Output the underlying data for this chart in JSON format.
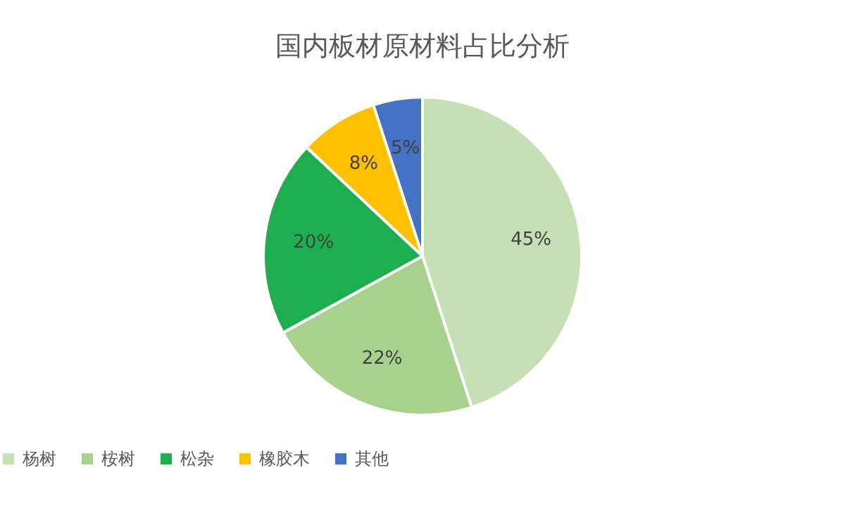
{
  "chart_data": {
    "type": "pie",
    "title": "国内板材原材料占比分析",
    "categories": [
      "杨树",
      "桉树",
      "松杂",
      "橡胶木",
      "其他"
    ],
    "values": [
      45,
      22,
      20,
      8,
      5
    ],
    "colors": [
      "#c5e0b4",
      "#a9d18e",
      "#1fae4f",
      "#ffc000",
      "#4472c4"
    ],
    "value_labels": [
      "45%",
      "22%",
      "20%",
      "8%",
      "5%"
    ],
    "legend": "bottom"
  }
}
